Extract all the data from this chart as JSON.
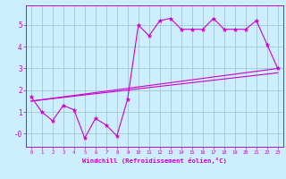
{
  "bg_color": "#cceeff",
  "line_color": "#cc00cc",
  "grid_color": "#99cccc",
  "xlabel": "Windchill (Refroidissement éolien,°C)",
  "xlim": [
    -0.5,
    23.5
  ],
  "ylim": [
    -0.6,
    5.9
  ],
  "yticks": [
    0,
    1,
    2,
    3,
    4,
    5
  ],
  "ytick_labels": [
    "-0",
    "1",
    "2",
    "3",
    "4",
    "5"
  ],
  "xticks": [
    0,
    1,
    2,
    3,
    4,
    5,
    6,
    7,
    8,
    9,
    10,
    11,
    12,
    13,
    14,
    15,
    16,
    17,
    18,
    19,
    20,
    21,
    22,
    23
  ],
  "series1_x": [
    0,
    1,
    2,
    3,
    4,
    5,
    6,
    7,
    8,
    9,
    10,
    11,
    12,
    13,
    14,
    15,
    16,
    17,
    18,
    19,
    20,
    21,
    22,
    23
  ],
  "series1_y": [
    1.7,
    1.0,
    0.6,
    1.3,
    1.1,
    -0.2,
    0.7,
    0.4,
    -0.1,
    1.6,
    5.0,
    4.5,
    5.2,
    5.3,
    4.8,
    4.8,
    4.8,
    5.3,
    4.8,
    4.8,
    4.8,
    5.2,
    4.1,
    3.0
  ],
  "series2_x": [
    0,
    23
  ],
  "series2_y": [
    1.5,
    3.0
  ],
  "series3_x": [
    0,
    23
  ],
  "series3_y": [
    1.5,
    2.8
  ]
}
